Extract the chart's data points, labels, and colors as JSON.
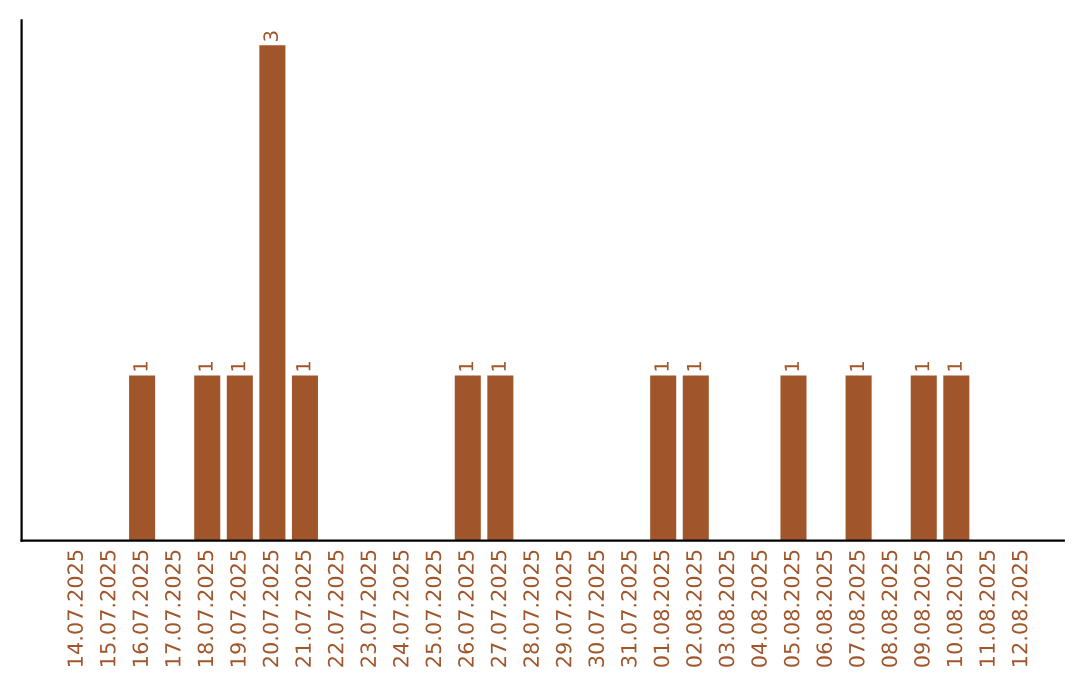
{
  "chart_data": {
    "type": "bar",
    "categories": [
      "14.07.2025",
      "15.07.2025",
      "16.07.2025",
      "17.07.2025",
      "18.07.2025",
      "19.07.2025",
      "20.07.2025",
      "21.07.2025",
      "22.07.2025",
      "23.07.2025",
      "24.07.2025",
      "25.07.2025",
      "26.07.2025",
      "27.07.2025",
      "28.07.2025",
      "29.07.2025",
      "30.07.2025",
      "31.07.2025",
      "01.08.2025",
      "02.08.2025",
      "03.08.2025",
      "04.08.2025",
      "05.08.2025",
      "06.08.2025",
      "07.08.2025",
      "08.08.2025",
      "09.08.2025",
      "10.08.2025",
      "11.08.2025",
      "12.08.2025"
    ],
    "values": [
      0,
      0,
      1,
      0,
      1,
      1,
      3,
      1,
      0,
      0,
      0,
      0,
      1,
      1,
      0,
      0,
      0,
      0,
      1,
      1,
      0,
      0,
      1,
      0,
      1,
      0,
      1,
      1,
      0,
      0
    ],
    "value_labels": [
      null,
      null,
      "1",
      null,
      "1",
      "1",
      "3",
      "1",
      null,
      null,
      null,
      null,
      "1",
      "1",
      null,
      null,
      null,
      null,
      "1",
      "1",
      null,
      null,
      "1",
      null,
      "1",
      null,
      "1",
      "1",
      null,
      null
    ],
    "color": "#a0562a",
    "tick_labels": "x",
    "grid": false,
    "legend": false
  }
}
